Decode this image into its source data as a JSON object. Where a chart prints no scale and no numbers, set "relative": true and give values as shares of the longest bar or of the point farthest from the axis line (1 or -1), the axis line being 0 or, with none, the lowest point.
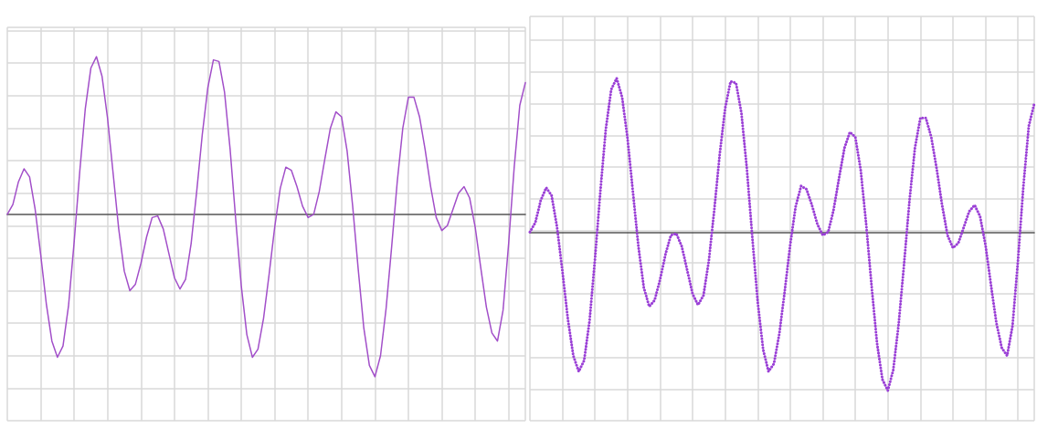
{
  "chart_data": [
    {
      "type": "line",
      "relative": true,
      "grid": true,
      "marker": "none",
      "line_style": "solid",
      "categories": [
        null,
        null,
        null,
        null,
        null,
        null,
        null,
        null,
        null,
        null,
        null,
        null,
        null,
        null,
        null,
        null,
        null,
        null,
        null,
        null,
        null,
        null,
        null,
        null,
        null,
        null,
        null,
        null,
        null,
        null,
        null,
        null,
        null,
        null,
        null,
        null,
        null,
        null,
        null,
        null,
        null,
        null,
        null,
        null,
        null,
        null,
        null,
        null,
        null,
        null,
        null,
        null,
        null,
        null,
        null,
        null,
        null,
        null,
        null,
        null,
        null,
        null,
        null,
        null,
        null,
        null,
        null,
        null,
        null,
        null,
        null,
        null,
        null,
        null,
        null,
        null,
        null,
        null,
        null,
        null,
        null,
        null,
        null,
        null,
        null,
        null,
        null,
        null,
        null,
        null,
        null,
        null,
        null,
        null
      ],
      "series": [
        {
          "color": "#a24fc9",
          "values": [
            0.0,
            0.06,
            0.2,
            0.28,
            0.23,
            0.03,
            -0.25,
            -0.55,
            -0.78,
            -0.88,
            -0.81,
            -0.56,
            -0.17,
            0.26,
            0.65,
            0.9,
            0.97,
            0.85,
            0.59,
            0.25,
            -0.09,
            -0.35,
            -0.47,
            -0.43,
            -0.3,
            -0.14,
            -0.02,
            -0.01,
            -0.09,
            -0.24,
            -0.39,
            -0.46,
            -0.4,
            -0.18,
            0.14,
            0.49,
            0.78,
            0.95,
            0.94,
            0.75,
            0.4,
            -0.03,
            -0.44,
            -0.74,
            -0.88,
            -0.83,
            -0.64,
            -0.37,
            -0.08,
            0.16,
            0.29,
            0.27,
            0.17,
            0.05,
            -0.02,
            0.0,
            0.14,
            0.34,
            0.53,
            0.63,
            0.6,
            0.39,
            0.05,
            -0.34,
            -0.7,
            -0.93,
            -1.0,
            -0.87,
            -0.58,
            -0.2,
            0.2,
            0.53,
            0.72,
            0.72,
            0.6,
            0.4,
            0.17,
            -0.02,
            -0.1,
            -0.07,
            0.03,
            0.13,
            0.17,
            0.1,
            -0.08,
            -0.33,
            -0.57,
            -0.73,
            -0.78,
            -0.59,
            -0.18,
            0.29,
            0.67,
            0.81
          ]
        }
      ]
    },
    {
      "type": "line",
      "relative": true,
      "grid": true,
      "marker": "none",
      "line_style": "dotted",
      "categories": [
        null,
        null,
        null,
        null,
        null,
        null,
        null,
        null,
        null,
        null,
        null,
        null,
        null,
        null,
        null,
        null,
        null,
        null,
        null,
        null,
        null,
        null,
        null,
        null,
        null,
        null,
        null,
        null,
        null,
        null,
        null,
        null,
        null,
        null,
        null,
        null,
        null,
        null,
        null,
        null,
        null,
        null,
        null,
        null,
        null,
        null,
        null,
        null,
        null,
        null,
        null,
        null,
        null,
        null,
        null,
        null,
        null,
        null,
        null,
        null,
        null,
        null,
        null,
        null,
        null,
        null,
        null,
        null,
        null,
        null,
        null,
        null,
        null,
        null,
        null,
        null,
        null,
        null,
        null,
        null,
        null,
        null,
        null,
        null,
        null,
        null,
        null,
        null,
        null,
        null,
        null,
        null,
        null,
        null
      ],
      "series": [
        {
          "color": "#9a3fd6",
          "values": [
            0.0,
            0.06,
            0.2,
            0.28,
            0.23,
            0.03,
            -0.25,
            -0.55,
            -0.78,
            -0.88,
            -0.81,
            -0.56,
            -0.17,
            0.26,
            0.65,
            0.9,
            0.97,
            0.85,
            0.59,
            0.25,
            -0.09,
            -0.35,
            -0.47,
            -0.43,
            -0.3,
            -0.14,
            -0.02,
            -0.01,
            -0.09,
            -0.24,
            -0.39,
            -0.46,
            -0.4,
            -0.18,
            0.14,
            0.49,
            0.78,
            0.95,
            0.94,
            0.75,
            0.4,
            -0.03,
            -0.44,
            -0.74,
            -0.88,
            -0.83,
            -0.64,
            -0.37,
            -0.08,
            0.16,
            0.29,
            0.27,
            0.17,
            0.05,
            -0.02,
            0.0,
            0.14,
            0.34,
            0.53,
            0.63,
            0.6,
            0.39,
            0.05,
            -0.34,
            -0.7,
            -0.93,
            -1.0,
            -0.87,
            -0.58,
            -0.2,
            0.2,
            0.53,
            0.72,
            0.72,
            0.6,
            0.4,
            0.17,
            -0.02,
            -0.1,
            -0.07,
            0.03,
            0.13,
            0.17,
            0.1,
            -0.08,
            -0.33,
            -0.57,
            -0.73,
            -0.78,
            -0.59,
            -0.18,
            0.29,
            0.67,
            0.81
          ]
        }
      ]
    }
  ]
}
